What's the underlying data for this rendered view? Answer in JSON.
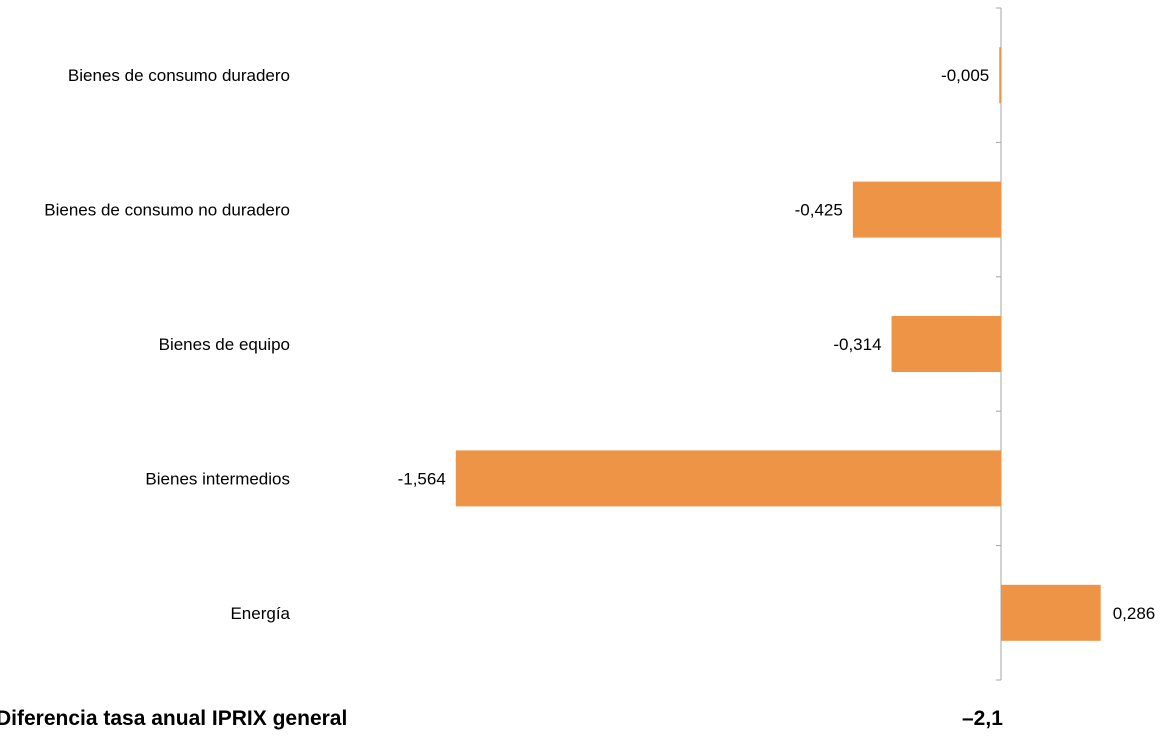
{
  "chart_data": {
    "type": "bar",
    "orientation": "horizontal",
    "categories": [
      "Bienes de consumo duradero",
      "Bienes de consumo no duradero",
      "Bienes de equipo",
      "Bienes intermedios",
      "Energía"
    ],
    "values": [
      -0.005,
      -0.425,
      -0.314,
      -1.564,
      0.286
    ],
    "value_labels": [
      "-0,005",
      "-0,425",
      "-0,314",
      "-1,564",
      "0,286"
    ],
    "bar_color": "#ED9447",
    "axis_color": "#A6A6A6",
    "xlim": [
      -2.0,
      0.5
    ],
    "grid": false,
    "legend": "none"
  },
  "summary": {
    "label": "Diferencia tasa anual IPRIX general",
    "value": "–2,1"
  }
}
